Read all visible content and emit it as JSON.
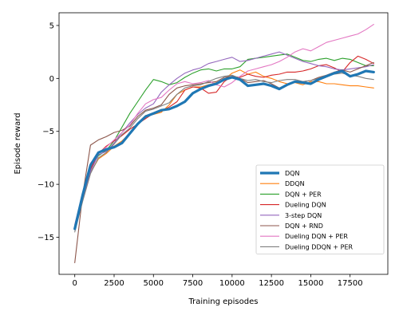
{
  "chart_data": {
    "type": "line",
    "xlabel": "Training episodes",
    "ylabel": "Episode reward",
    "xlim": [
      -1000,
      19900
    ],
    "ylim": [
      -18.5,
      6.2
    ],
    "xticks": [
      0,
      2500,
      5000,
      7500,
      10000,
      12500,
      15000,
      17500
    ],
    "yticks": [
      -15,
      -10,
      -5,
      0,
      5
    ],
    "grid": false,
    "legend_position": "lower-right",
    "series": [
      {
        "name": "DQN",
        "color": "#1f77b4",
        "width": 3.2,
        "x": [
          0,
          500,
          1000,
          1500,
          2000,
          2500,
          3000,
          3500,
          4000,
          4500,
          5000,
          5500,
          6000,
          6500,
          7000,
          7500,
          8000,
          8500,
          9000,
          9500,
          10000,
          10500,
          11000,
          11500,
          12000,
          12500,
          13000,
          13500,
          14000,
          14500,
          15000,
          15500,
          16000,
          16500,
          17000,
          17500,
          18000,
          18500,
          19000
        ],
        "y": [
          -14.2,
          -11.0,
          -8.2,
          -7.0,
          -6.7,
          -6.5,
          -6.1,
          -5.2,
          -4.3,
          -3.6,
          -3.3,
          -3.0,
          -2.9,
          -2.6,
          -2.2,
          -1.4,
          -1.0,
          -0.7,
          -0.5,
          -0.1,
          0.1,
          -0.1,
          -0.7,
          -0.6,
          -0.5,
          -0.7,
          -1.0,
          -0.6,
          -0.3,
          -0.4,
          -0.5,
          -0.1,
          0.2,
          0.5,
          0.7,
          0.2,
          0.4,
          0.7,
          0.6
        ]
      },
      {
        "name": "DDQN",
        "color": "#ff7f0e",
        "width": 1.1,
        "x": [
          0,
          500,
          1000,
          1500,
          2000,
          2500,
          3000,
          3500,
          4000,
          4500,
          5000,
          5500,
          6000,
          6500,
          7000,
          7500,
          8000,
          8500,
          9000,
          9500,
          10000,
          10500,
          11000,
          11500,
          12000,
          12500,
          13000,
          13500,
          14000,
          14500,
          15000,
          15500,
          16000,
          16500,
          17000,
          17500,
          18000,
          18500,
          19000
        ],
        "y": [
          -13.9,
          -11.3,
          -8.9,
          -7.6,
          -7.1,
          -6.4,
          -5.9,
          -5.2,
          -4.4,
          -3.5,
          -3.4,
          -3.2,
          -2.5,
          -1.5,
          -1.1,
          -0.8,
          -0.8,
          -0.6,
          -0.4,
          -0.1,
          0.5,
          0.8,
          0.4,
          0.6,
          0.2,
          0.0,
          -0.3,
          -0.5,
          -0.4,
          -0.6,
          -0.3,
          -0.3,
          -0.5,
          -0.5,
          -0.6,
          -0.7,
          -0.7,
          -0.8,
          -0.9
        ]
      },
      {
        "name": "DQN + PER",
        "color": "#2ca02c",
        "width": 1.1,
        "x": [
          0,
          500,
          1000,
          1500,
          2000,
          2500,
          3000,
          3500,
          4000,
          4500,
          5000,
          5500,
          6000,
          6500,
          7000,
          7500,
          8000,
          8500,
          9000,
          9500,
          10000,
          10500,
          11000,
          11500,
          12000,
          12500,
          13000,
          13500,
          14000,
          14500,
          15000,
          15500,
          16000,
          16500,
          17000,
          17500,
          18000,
          18500,
          19000
        ],
        "y": [
          -14.1,
          -11.2,
          -8.5,
          -7.3,
          -6.8,
          -5.9,
          -4.6,
          -3.3,
          -2.2,
          -1.1,
          -0.1,
          -0.3,
          -0.6,
          -0.4,
          0.1,
          0.5,
          0.8,
          0.9,
          0.7,
          0.9,
          0.9,
          1.1,
          1.8,
          1.9,
          2.0,
          2.1,
          2.2,
          2.3,
          2.0,
          1.7,
          1.6,
          1.8,
          1.9,
          1.7,
          1.9,
          1.8,
          1.5,
          1.2,
          1.2
        ]
      },
      {
        "name": "Dueling DQN",
        "color": "#d62728",
        "width": 1.1,
        "x": [
          0,
          500,
          1000,
          1500,
          2000,
          2500,
          3000,
          3500,
          4000,
          4500,
          5000,
          5500,
          6000,
          6500,
          7000,
          7500,
          8000,
          8500,
          9000,
          9500,
          10000,
          10500,
          11000,
          11500,
          12000,
          12500,
          13000,
          13500,
          14000,
          14500,
          15000,
          15500,
          16000,
          16500,
          17000,
          17500,
          18000,
          18500,
          19000
        ],
        "y": [
          -14.3,
          -11.1,
          -8.6,
          -7.1,
          -6.4,
          -5.9,
          -5.4,
          -4.8,
          -4.3,
          -3.8,
          -3.3,
          -3.1,
          -2.7,
          -2.2,
          -1.1,
          -0.8,
          -0.9,
          -1.4,
          -1.3,
          -0.3,
          0.2,
          0.1,
          0.4,
          0.2,
          0.1,
          0.3,
          0.4,
          0.6,
          0.6,
          0.7,
          0.9,
          1.2,
          1.3,
          1.0,
          0.6,
          1.5,
          2.1,
          1.8,
          1.4
        ]
      },
      {
        "name": "3-step DQN",
        "color": "#9467bd",
        "width": 1.1,
        "x": [
          0,
          500,
          1000,
          1500,
          2000,
          2500,
          3000,
          3500,
          4000,
          4500,
          5000,
          5500,
          6000,
          6500,
          7000,
          7500,
          8000,
          8500,
          9000,
          9500,
          10000,
          10500,
          11000,
          11500,
          12000,
          12500,
          13000,
          13500,
          14000,
          14500,
          15000,
          15500,
          16000,
          16500,
          17000,
          17500,
          18000,
          18500,
          19000
        ],
        "y": [
          -14.0,
          -11.4,
          -8.8,
          -7.2,
          -6.9,
          -6.1,
          -5.1,
          -4.2,
          -3.4,
          -2.8,
          -2.4,
          -1.3,
          -0.6,
          0.0,
          0.5,
          0.8,
          1.0,
          1.4,
          1.6,
          1.8,
          2.0,
          1.6,
          1.7,
          1.9,
          2.1,
          2.3,
          2.5,
          2.2,
          1.9,
          1.6,
          1.4,
          1.2,
          1.1,
          0.9,
          0.8,
          0.9,
          1.0,
          1.1,
          1.3
        ]
      },
      {
        "name": "DQN + RND",
        "color": "#8c564b",
        "width": 1.1,
        "x": [
          0,
          500,
          1000,
          1500,
          2000,
          2500,
          3000,
          3500,
          4000,
          4500,
          5000,
          5500,
          6000,
          6500,
          7000,
          7500,
          8000,
          8500,
          9000,
          9500,
          10000,
          10500,
          11000,
          11500,
          12000,
          12500,
          13000,
          13500,
          14000,
          14500,
          15000,
          15500,
          16000,
          16500,
          17000,
          17500,
          18000,
          18500,
          19000
        ],
        "y": [
          -17.4,
          -11.0,
          -6.3,
          -5.8,
          -5.5,
          -5.1,
          -4.9,
          -4.5,
          -3.6,
          -3.0,
          -2.8,
          -2.5,
          -1.5,
          -0.9,
          -0.7,
          -0.6,
          -0.5,
          -0.4,
          -0.3,
          0.1,
          0.2,
          0.0,
          -0.4,
          -0.3,
          -0.2,
          -0.5,
          -0.9,
          -0.6,
          -0.3,
          -0.3,
          -0.2,
          0.1,
          0.3,
          0.6,
          0.8,
          0.6,
          0.9,
          1.2,
          1.5
        ]
      },
      {
        "name": "Dueling DQN + PER",
        "color": "#e377c2",
        "width": 1.1,
        "x": [
          0,
          500,
          1000,
          1500,
          2000,
          2500,
          3000,
          3500,
          4000,
          4500,
          5000,
          5500,
          6000,
          6500,
          7000,
          7500,
          8000,
          8500,
          9000,
          9500,
          10000,
          10500,
          11000,
          11500,
          12000,
          12500,
          13000,
          13500,
          14000,
          14500,
          15000,
          15500,
          16000,
          16500,
          17000,
          17500,
          18000,
          18500,
          19000
        ],
        "y": [
          -13.8,
          -10.8,
          -8.0,
          -7.1,
          -6.5,
          -5.8,
          -5.1,
          -4.4,
          -3.3,
          -2.4,
          -2.0,
          -1.8,
          -1.1,
          -0.5,
          -0.3,
          -0.5,
          -0.4,
          -0.2,
          -0.6,
          -0.8,
          -0.4,
          0.2,
          0.7,
          0.9,
          1.1,
          1.3,
          1.6,
          2.0,
          2.5,
          2.8,
          2.6,
          3.0,
          3.4,
          3.6,
          3.8,
          4.0,
          4.2,
          4.6,
          5.1
        ]
      },
      {
        "name": "Dueling DDQN + PER",
        "color": "#7f7f7f",
        "width": 1.1,
        "x": [
          0,
          500,
          1000,
          1500,
          2000,
          2500,
          3000,
          3500,
          4000,
          4500,
          5000,
          5500,
          6000,
          6500,
          7000,
          7500,
          8000,
          8500,
          9000,
          9500,
          10000,
          10500,
          11000,
          11500,
          12000,
          12500,
          13000,
          13500,
          14000,
          14500,
          15000,
          15500,
          16000,
          16500,
          17000,
          17500,
          18000,
          18500,
          19000
        ],
        "y": [
          -14.5,
          -11.6,
          -9.0,
          -7.5,
          -7.0,
          -6.2,
          -5.3,
          -4.7,
          -3.8,
          -3.1,
          -2.9,
          -2.6,
          -2.3,
          -1.5,
          -0.9,
          -0.7,
          -0.6,
          -0.3,
          0.0,
          0.2,
          0.3,
          0.0,
          -0.2,
          -0.1,
          -0.3,
          -0.4,
          -0.2,
          -0.1,
          -0.1,
          -0.3,
          -0.2,
          0.0,
          0.3,
          0.4,
          0.5,
          0.3,
          0.2,
          0.0,
          -0.1
        ]
      }
    ]
  }
}
